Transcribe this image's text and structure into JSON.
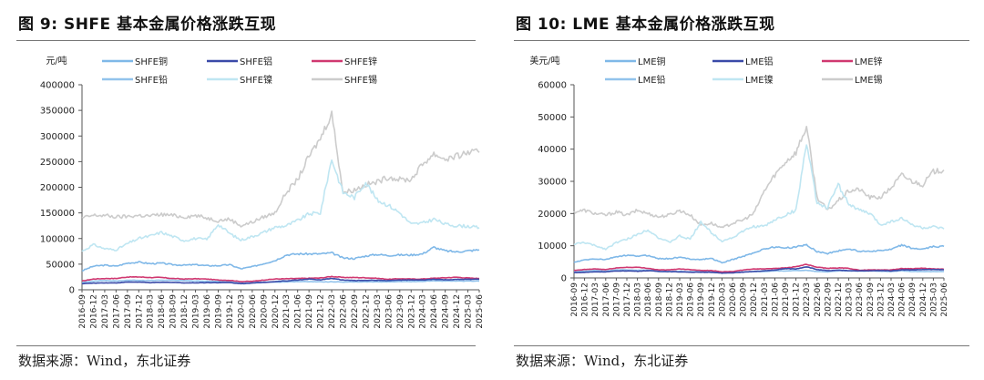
{
  "figures": [
    {
      "title": "图  9:  SHFE 基本金属价格涨跌互现",
      "source": "数据来源：Wind，东北证券",
      "chart_data": {
        "type": "line",
        "ylabel": "元/吨",
        "ylim": [
          0,
          400000
        ],
        "yticks": [
          "0",
          "50000",
          "100000",
          "150000",
          "200000",
          "250000",
          "300000",
          "350000",
          "400000"
        ],
        "x": [
          "2016-09",
          "2016-12",
          "2017-03",
          "2017-06",
          "2017-09",
          "2017-12",
          "2018-03",
          "2018-06",
          "2018-09",
          "2018-12",
          "2019-03",
          "2019-06",
          "2019-09",
          "2019-12",
          "2020-03",
          "2020-06",
          "2020-09",
          "2020-12",
          "2021-03",
          "2021-06",
          "2021-09",
          "2021-12",
          "2022-03",
          "2022-06",
          "2022-09",
          "2022-12",
          "2023-03",
          "2023-06",
          "2023-09",
          "2023-12",
          "2024-03",
          "2024-06",
          "2024-09",
          "2024-12",
          "2025-03",
          "2025-06"
        ],
        "legend_position": "top",
        "series": [
          {
            "name": "SHFE铜",
            "color": "#7fb8e8",
            "values": [
              37000,
              46000,
              48000,
              46000,
              52000,
              54000,
              51000,
              52000,
              49000,
              48000,
              49000,
              47000,
              47000,
              49000,
              41000,
              45000,
              51000,
              57000,
              68000,
              70000,
              70000,
              70000,
              72000,
              62000,
              61000,
              66000,
              69000,
              67000,
              68000,
              68000,
              70000,
              83000,
              76000,
              74000,
              76000,
              78000
            ]
          },
          {
            "name": "SHFE铝",
            "color": "#3a4aa8",
            "values": [
              12000,
              13000,
              13500,
              13500,
              15000,
              15000,
              14000,
              14500,
              14500,
              13500,
              13500,
              14000,
              14000,
              14000,
              12000,
              13000,
              14500,
              16000,
              17500,
              19000,
              21000,
              19000,
              22500,
              19000,
              18000,
              18500,
              18500,
              18000,
              19000,
              19000,
              19000,
              20500,
              19500,
              20000,
              20500,
              20500
            ]
          },
          {
            "name": "SHFE锌",
            "color": "#d03870",
            "values": [
              17000,
              21000,
              22000,
              22000,
              25000,
              25000,
              24000,
              24000,
              22000,
              21000,
              21500,
              21000,
              19000,
              18500,
              16000,
              16500,
              19000,
              21000,
              21500,
              22000,
              22500,
              23000,
              26000,
              24000,
              24000,
              23500,
              22500,
              20500,
              21500,
              21000,
              21000,
              22500,
              23500,
              24500,
              23000,
              22000
            ]
          },
          {
            "name": "SHFE铅",
            "color": "#92c3ec",
            "values": [
              14000,
              17000,
              18000,
              17000,
              18500,
              18500,
              18000,
              18500,
              18500,
              18000,
              17000,
              16500,
              16500,
              15500,
              14000,
              14500,
              15000,
              15000,
              15500,
              16000,
              16000,
              15500,
              15500,
              15000,
              15500,
              15500,
              15500,
              15500,
              16000,
              16000,
              16500,
              17500,
              17000,
              17000,
              17000,
              17000
            ]
          },
          {
            "name": "SHFE镍",
            "color": "#bfe6f2",
            "values": [
              75000,
              88000,
              80000,
              78000,
              90000,
              100000,
              105000,
              112000,
              104000,
              96000,
              100000,
              98000,
              128000,
              110000,
              97000,
              104000,
              112000,
              122000,
              125000,
              135000,
              148000,
              150000,
              255000,
              190000,
              180000,
              210000,
              175000,
              165000,
              150000,
              128000,
              130000,
              138000,
              128000,
              125000,
              124000,
              121000
            ]
          },
          {
            "name": "SHFE锡",
            "color": "#cccccc",
            "values": [
              140000,
              145000,
              145000,
              142000,
              143000,
              145000,
              144000,
              147000,
              145000,
              142000,
              145000,
              140000,
              135000,
              138000,
              125000,
              132000,
              142000,
              150000,
              190000,
              215000,
              260000,
              295000,
              345000,
              190000,
              195000,
              205000,
              210000,
              220000,
              215000,
              215000,
              245000,
              265000,
              255000,
              260000,
              268000,
              268000
            ]
          }
        ]
      }
    },
    {
      "title": "图  10:  LME 基本金属价格涨跌互现",
      "source": "数据来源：Wind，东北证券",
      "chart_data": {
        "type": "line",
        "ylabel": "美元/吨",
        "ylim": [
          0,
          60000
        ],
        "yticks": [
          "0",
          "10000",
          "20000",
          "30000",
          "40000",
          "50000",
          "60000"
        ],
        "x": [
          "2016-09",
          "2016-12",
          "2017-03",
          "2017-06",
          "2017-09",
          "2017-12",
          "2018-03",
          "2018-06",
          "2018-09",
          "2018-12",
          "2019-03",
          "2019-06",
          "2019-09",
          "2019-12",
          "2020-03",
          "2020-06",
          "2020-09",
          "2020-12",
          "2021-03",
          "2021-06",
          "2021-09",
          "2021-12",
          "2022-03",
          "2022-06",
          "2022-09",
          "2022-12",
          "2023-03",
          "2023-06",
          "2023-09",
          "2023-12",
          "2024-03",
          "2024-06",
          "2024-09",
          "2024-12",
          "2025-03",
          "2025-06"
        ],
        "legend_position": "top",
        "series": [
          {
            "name": "LME铜",
            "color": "#7fb8e8",
            "values": [
              4800,
              5600,
              5900,
              5700,
              6600,
              7000,
              6800,
              7000,
              6000,
              6000,
              6400,
              5900,
              5700,
              6100,
              4700,
              5700,
              6700,
              7800,
              9000,
              9600,
              9300,
              9600,
              10300,
              8200,
              7600,
              8400,
              9000,
              8300,
              8300,
              8500,
              8800,
              10200,
              9200,
              8900,
              9700,
              9800
            ]
          },
          {
            "name": "LME铝",
            "color": "#3a4aa8",
            "values": [
              1650,
              1750,
              1900,
              1900,
              2150,
              2200,
              2100,
              2250,
              2050,
              1950,
              1900,
              1800,
              1750,
              1780,
              1500,
              1600,
              1800,
              2000,
              2200,
              2450,
              2900,
              2800,
              3500,
              2600,
              2250,
              2400,
              2300,
              2200,
              2200,
              2300,
              2200,
              2500,
              2500,
              2600,
              2600,
              2550
            ]
          },
          {
            "name": "LME锌",
            "color": "#d03870",
            "values": [
              2300,
              2600,
              2800,
              2600,
              3100,
              3300,
              3300,
              3000,
              2500,
              2500,
              2800,
              2600,
              2350,
              2300,
              1900,
              2000,
              2450,
              2800,
              2800,
              3000,
              3100,
              3500,
              4200,
              3300,
              3000,
              3100,
              3000,
              2400,
              2500,
              2500,
              2500,
              2900,
              2900,
              3000,
              2800,
              2700
            ]
          },
          {
            "name": "LME铅",
            "color": "#92c3ec",
            "values": [
              1950,
              2100,
              2300,
              2100,
              2500,
              2500,
              2400,
              2450,
              2000,
              1950,
              2050,
              1900,
              2100,
              1950,
              1700,
              1750,
              1800,
              2000,
              2000,
              2150,
              2200,
              2300,
              2350,
              2000,
              1900,
              2200,
              2150,
              2100,
              2200,
              2050,
              2050,
              2200,
              2000,
              2000,
              1950,
              2000
            ]
          },
          {
            "name": "LME镍",
            "color": "#bfe6f2",
            "values": [
              10500,
              11000,
              10000,
              9000,
              11000,
              12000,
              13500,
              15000,
              12500,
              11000,
              13000,
              12000,
              17500,
              14000,
              11500,
              12500,
              14500,
              16000,
              16000,
              18000,
              19500,
              21000,
              42000,
              23000,
              22000,
              29000,
              23000,
              21000,
              20000,
              16500,
              17500,
              18500,
              16500,
              15500,
              15800,
              15200
            ]
          },
          {
            "name": "LME锡",
            "color": "#cccccc",
            "values": [
              20500,
              21000,
              20000,
              19500,
              20500,
              19500,
              21000,
              20000,
              19000,
              19500,
              21000,
              19500,
              16500,
              17000,
              15500,
              17000,
              18000,
              20000,
              27000,
              32000,
              36000,
              39000,
              47000,
              25000,
              21000,
              24000,
              27000,
              27500,
              25000,
              25000,
              28000,
              32000,
              30000,
              29000,
              33000,
              33500
            ]
          }
        ]
      }
    }
  ]
}
